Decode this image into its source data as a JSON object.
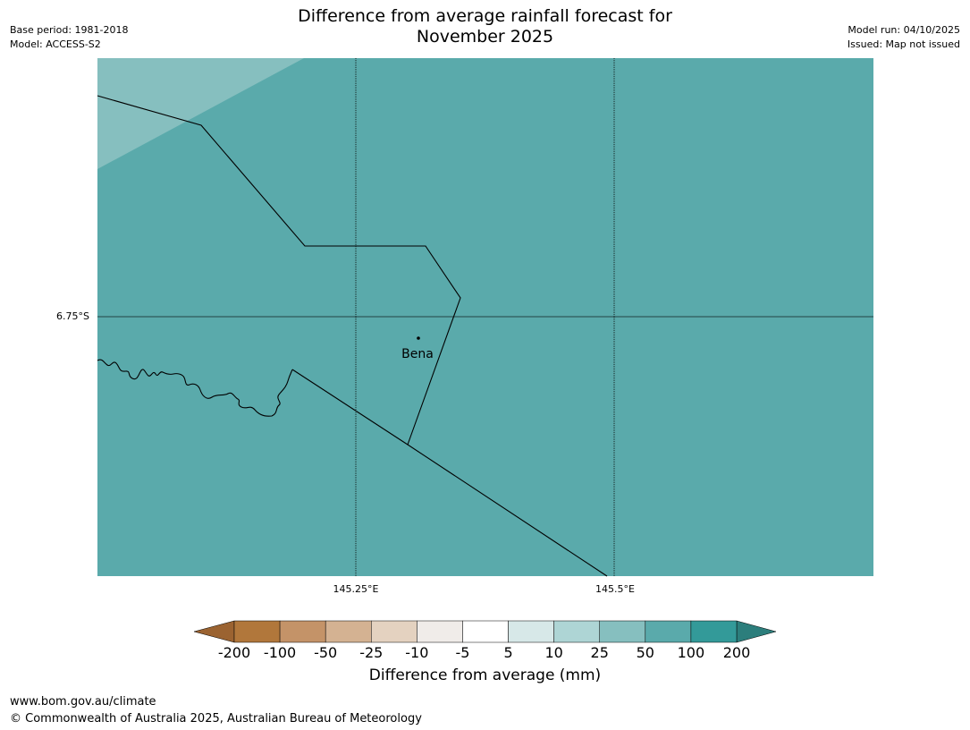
{
  "header": {
    "title_line1": "Difference from average rainfall forecast for",
    "title_line2": "November 2025",
    "base_period": "Base period: 1981-2018",
    "model": "Model: ACCESS-S2",
    "model_run": "Model run: 04/10/2025",
    "issued": "Issued: Map not issued"
  },
  "map": {
    "latitude_label": "6.75°S",
    "longitude_labels": [
      "145.25°E",
      "145.5°E"
    ],
    "place": "Bena",
    "fill_category": "50 to 100 mm above average",
    "colors": {
      "main_fill": "#5aaaab",
      "corner_fill": "#86bfbf",
      "border_line": "#000000",
      "gridline": "#000000"
    }
  },
  "legend": {
    "label": "Difference from average (mm)",
    "ticks": [
      "-200",
      "-100",
      "-50",
      "-25",
      "-10",
      "-5",
      "5",
      "10",
      "25",
      "50",
      "100",
      "200"
    ],
    "colors": [
      "#9b6331",
      "#b1773b",
      "#c49368",
      "#d4b292",
      "#e4d2c0",
      "#f0ece9",
      "#ffffff",
      "#d7e8e8",
      "#aed5d5",
      "#86bfbf",
      "#5aaaab",
      "#339a99",
      "#2c7e7c"
    ]
  },
  "footer": {
    "url": "www.bom.gov.au/climate",
    "copyright": "© Commonwealth of Australia 2025, Australian Bureau of Meteorology"
  }
}
